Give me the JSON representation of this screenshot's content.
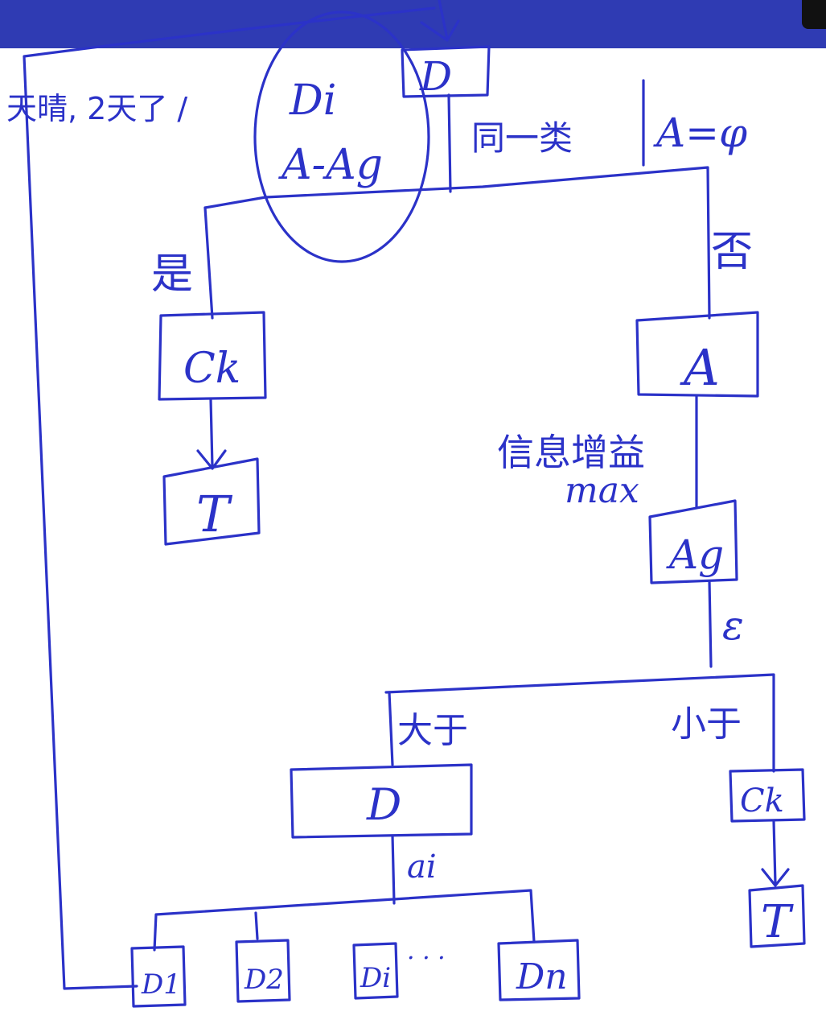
{
  "colors": {
    "ink": "#2b32c8",
    "topbar": "#2f3bb3",
    "background": "#ffffff"
  },
  "notes": {
    "top_left": "天晴, 2天了 /",
    "circled_top": "Di",
    "circled_bottom": "A-Ag",
    "same_class": "同一类",
    "empty_attr": "A=φ",
    "yes": "是",
    "no": "否",
    "info_gain": "信息增益",
    "max": "max",
    "epsilon": "ε",
    "greater": "大于",
    "less": "小于",
    "ai": "ai",
    "ellipsis": "· · ·"
  },
  "nodes": {
    "root": "D",
    "ck_left": "Ck",
    "t_left": "T",
    "a": "A",
    "ag": "Ag",
    "d_mid": "D",
    "ck_right": "Ck",
    "t_right": "T",
    "d1": "D1",
    "d2": "D2",
    "di": "Di",
    "dn": "Dn"
  }
}
